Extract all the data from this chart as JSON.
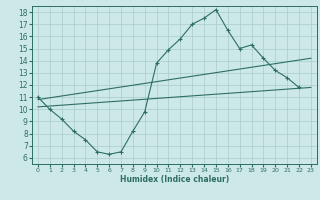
{
  "title": "",
  "xlabel": "Humidex (Indice chaleur)",
  "bg_color": "#cce8e8",
  "line_color": "#2e6e62",
  "grid_color": "#aacccc",
  "xlim": [
    -0.5,
    23.5
  ],
  "ylim": [
    5.5,
    18.5
  ],
  "xticks": [
    0,
    1,
    2,
    3,
    4,
    5,
    6,
    7,
    8,
    9,
    10,
    11,
    12,
    13,
    14,
    15,
    16,
    17,
    18,
    19,
    20,
    21,
    22,
    23
  ],
  "yticks": [
    6,
    7,
    8,
    9,
    10,
    11,
    12,
    13,
    14,
    15,
    16,
    17,
    18
  ],
  "main_line_x": [
    0,
    1,
    2,
    3,
    4,
    5,
    6,
    7,
    8,
    9,
    10,
    11,
    12,
    13,
    14,
    15,
    16,
    17,
    18,
    19,
    20,
    21,
    22
  ],
  "main_line_y": [
    11,
    10,
    9.2,
    8.2,
    7.5,
    6.5,
    6.3,
    6.5,
    8.2,
    9.8,
    13.8,
    14.9,
    15.8,
    17.0,
    17.5,
    18.2,
    16.5,
    15.0,
    15.3,
    14.2,
    13.2,
    12.6,
    11.8
  ],
  "trend1_x": [
    0,
    23
  ],
  "trend1_y": [
    10.8,
    14.2
  ],
  "trend2_x": [
    0,
    23
  ],
  "trend2_y": [
    10.2,
    11.8
  ]
}
